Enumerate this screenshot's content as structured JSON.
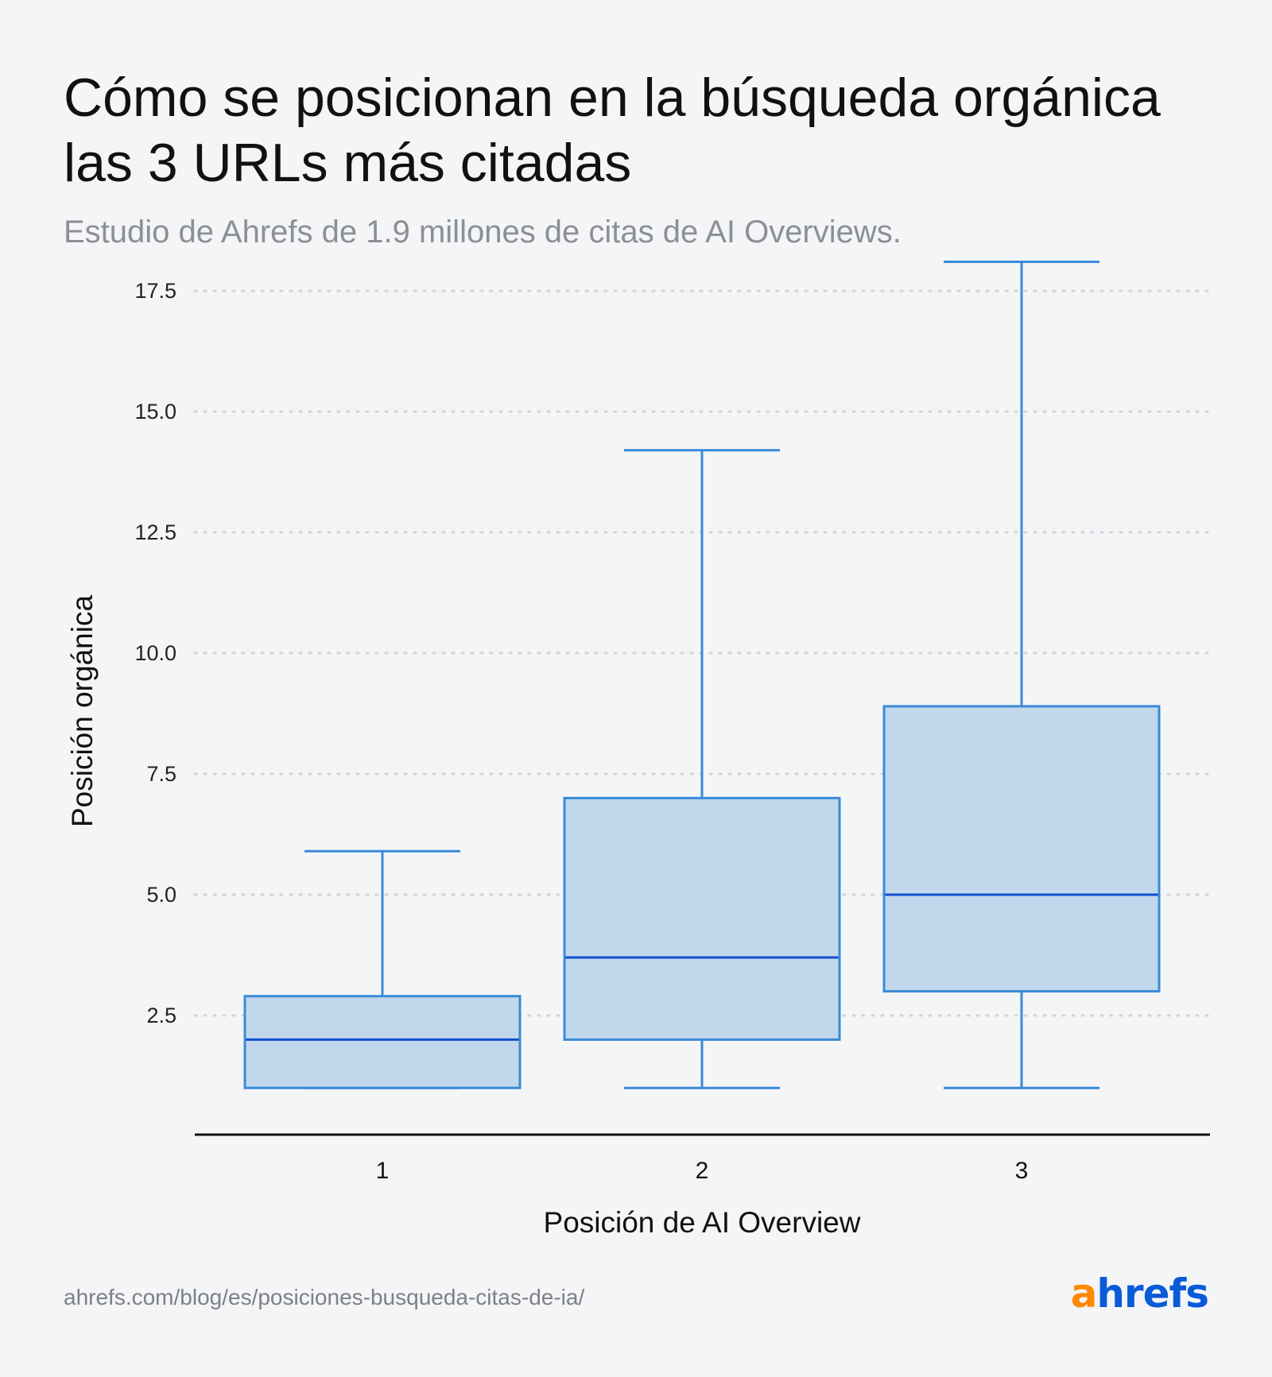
{
  "title": "Cómo se posicionan en la búsqueda orgánica las 3 URLs más citadas",
  "subtitle": "Estudio de Ahrefs de 1.9 millones de citas de AI Overviews.",
  "footer": {
    "url": "ahrefs.com/blog/es/posiciones-busqueda-citas-de-ia/",
    "logo_text": "ahrefs",
    "logo_first_letter": "a",
    "logo_rest": "hrefs"
  },
  "colors": {
    "box_fill": "#c1d7ec",
    "box_stroke": "#3a8ad8",
    "median": "#0f4fd0",
    "grid": "#d0d3d7",
    "axis": "#111111",
    "logo_a": "#ff8800",
    "logo_rest": "#0a5bd8"
  },
  "chart_data": {
    "type": "boxplot",
    "xlabel": "Posición de AI Overview",
    "ylabel": "Posición orgánica",
    "ylim": [
      0,
      18.3
    ],
    "yticks": [
      2.5,
      5.0,
      7.5,
      10.0,
      12.5,
      15.0,
      17.5
    ],
    "ytick_labels": [
      "2.5",
      "5.0",
      "7.5",
      "10.0",
      "12.5",
      "15.0",
      "17.5"
    ],
    "grid": "horizontal dotted",
    "categories": [
      "1",
      "2",
      "3"
    ],
    "boxes": [
      {
        "category": "1",
        "whisker_low": 1,
        "q1": 1,
        "median": 2,
        "q3": 2.9,
        "whisker_high": 5.9
      },
      {
        "category": "2",
        "whisker_low": 1,
        "q1": 2,
        "median": 3.7,
        "q3": 7,
        "whisker_high": 14.2
      },
      {
        "category": "3",
        "whisker_low": 1,
        "q1": 3,
        "median": 5,
        "q3": 8.9,
        "whisker_high": 18.1
      }
    ]
  }
}
